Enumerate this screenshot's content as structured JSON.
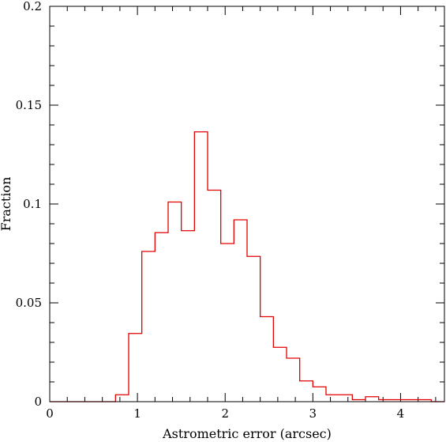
{
  "chart_data": {
    "type": "histogram",
    "xlabel": "Astrometric error (arcsec)",
    "ylabel": "Fraction",
    "xlim": [
      0,
      4.5
    ],
    "ylim": [
      0,
      0.2
    ],
    "x_ticks": [
      0,
      1,
      2,
      3,
      4
    ],
    "x_tick_labels": [
      "0",
      "1",
      "2",
      "3",
      "4"
    ],
    "y_ticks": [
      0,
      0.05,
      0.1,
      0.15,
      0.2
    ],
    "y_tick_labels": [
      "0",
      "0.05",
      "0.1",
      "0.15",
      "0.2"
    ],
    "x_minor_step": 0.2,
    "y_minor_step": 0.01,
    "bin_width": 0.15,
    "bin_edges": [
      0.0,
      0.15,
      0.3,
      0.45,
      0.6,
      0.75,
      0.9,
      1.05,
      1.2,
      1.35,
      1.5,
      1.65,
      1.8,
      1.95,
      2.1,
      2.25,
      2.4,
      2.55,
      2.7,
      2.85,
      3.0,
      3.15,
      3.3,
      3.45,
      3.6,
      3.75,
      3.9,
      4.05,
      4.2,
      4.35,
      4.5
    ],
    "values": [
      0,
      0,
      0,
      0,
      0,
      0.0035,
      0.0345,
      0.076,
      0.0855,
      0.101,
      0.0865,
      0.1365,
      0.107,
      0.08,
      0.092,
      0.0735,
      0.043,
      0.0275,
      0.022,
      0.0105,
      0.0075,
      0.0035,
      0.0035,
      0.001,
      0.0025,
      0.001,
      0.001,
      0.001,
      0.001,
      0
    ],
    "line_color": "#e00000",
    "grid": false
  }
}
